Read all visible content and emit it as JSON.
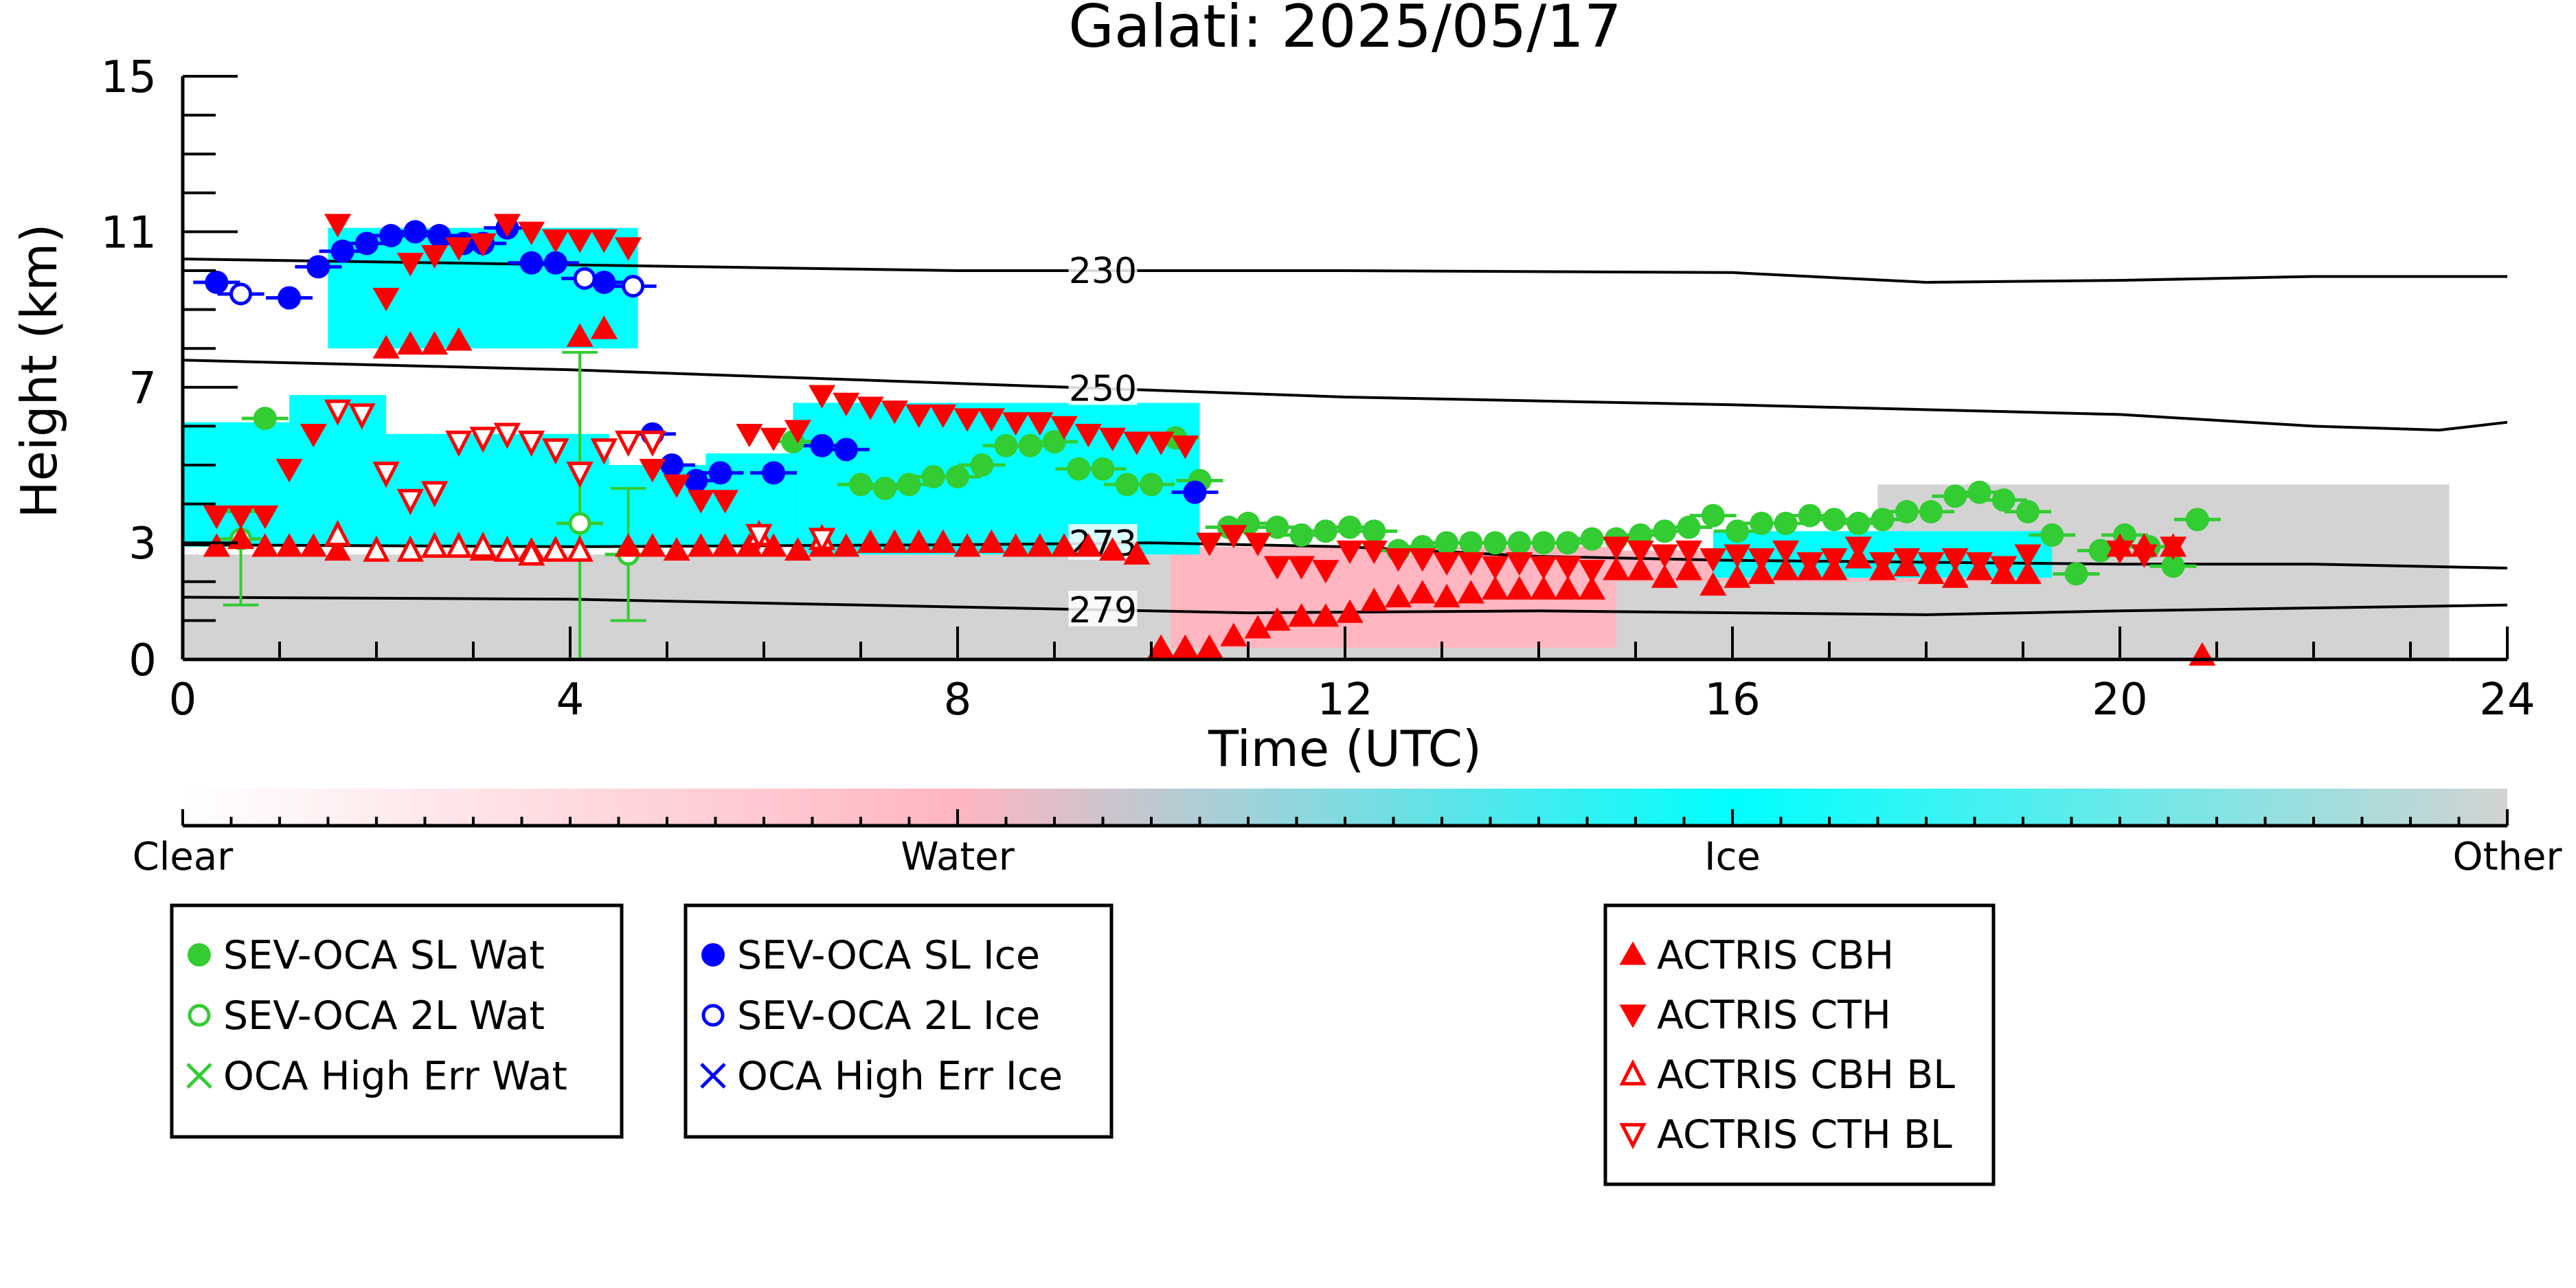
{
  "chart_data": {
    "type": "scatter",
    "title": "Galati: 2025/05/17",
    "xlabel": "Time (UTC)",
    "ylabel": "Height (km)",
    "xlim": [
      0,
      24
    ],
    "ylim": [
      0,
      15
    ],
    "xticks": [
      "0",
      "4",
      "8",
      "12",
      "16",
      "20",
      "24"
    ],
    "yticks": [
      "0",
      "3",
      "7",
      "11",
      "15"
    ],
    "colorbar": {
      "labels": [
        "Clear",
        "Water",
        "Ice",
        "Other"
      ],
      "colors": [
        "#ffffff",
        "#ffb6c1",
        "#00ffff",
        "#d3d3d3"
      ]
    },
    "contours": [
      {
        "label": "230",
        "points": [
          [
            0,
            10.3
          ],
          [
            4,
            10.15
          ],
          [
            8,
            10.0
          ],
          [
            12,
            10.0
          ],
          [
            16,
            9.95
          ],
          [
            18,
            9.7
          ],
          [
            20,
            9.75
          ],
          [
            22,
            9.85
          ],
          [
            24,
            9.85
          ]
        ]
      },
      {
        "label": "250",
        "points": [
          [
            0,
            7.7
          ],
          [
            4,
            7.45
          ],
          [
            8,
            7.1
          ],
          [
            12,
            6.75
          ],
          [
            16,
            6.55
          ],
          [
            20,
            6.3
          ],
          [
            22,
            6.0
          ],
          [
            23.3,
            5.9
          ],
          [
            24,
            6.1
          ]
        ]
      },
      {
        "label": "273",
        "points": [
          [
            0,
            2.95
          ],
          [
            4,
            2.9
          ],
          [
            8,
            2.95
          ],
          [
            10,
            3.0
          ],
          [
            12,
            2.9
          ],
          [
            14,
            2.65
          ],
          [
            16,
            2.55
          ],
          [
            20,
            2.45
          ],
          [
            22,
            2.45
          ],
          [
            24,
            2.35
          ]
        ]
      },
      {
        "label": "279",
        "points": [
          [
            0,
            1.6
          ],
          [
            4,
            1.55
          ],
          [
            8,
            1.35
          ],
          [
            11,
            1.2
          ],
          [
            14,
            1.25
          ],
          [
            18,
            1.15
          ],
          [
            20,
            1.25
          ],
          [
            24,
            1.4
          ]
        ]
      }
    ],
    "cloudmask": [
      {
        "class": "Other",
        "color": "#d3d3d3",
        "x0": 0,
        "x1": 23.4,
        "y0": 0,
        "y1": 2.7
      },
      {
        "class": "Other",
        "color": "#d3d3d3",
        "x0": 17.5,
        "x1": 23.4,
        "y0": 0,
        "y1": 4.5
      },
      {
        "class": "Water",
        "color": "#ffb6c1",
        "x0": 10.2,
        "x1": 14.8,
        "y0": 0.3,
        "y1": 2.9
      },
      {
        "class": "Water",
        "color": "#ffb6c1",
        "x0": 14.5,
        "x1": 19.2,
        "y0": 2.0,
        "y1": 2.8
      },
      {
        "class": "Ice",
        "color": "#00ffff",
        "x0": 0.0,
        "x1": 1.5,
        "y0": 2.9,
        "y1": 6.1
      },
      {
        "class": "Ice",
        "color": "#00ffff",
        "x0": 1.1,
        "x1": 2.1,
        "y0": 2.9,
        "y1": 6.8
      },
      {
        "class": "Ice",
        "color": "#00ffff",
        "x0": 2.1,
        "x1": 4.4,
        "y0": 2.9,
        "y1": 5.8
      },
      {
        "class": "Ice",
        "color": "#00ffff",
        "x0": 4.4,
        "x1": 5.4,
        "y0": 2.9,
        "y1": 5.0
      },
      {
        "class": "Ice",
        "color": "#00ffff",
        "x0": 5.4,
        "x1": 6.3,
        "y0": 2.9,
        "y1": 5.3
      },
      {
        "class": "Ice",
        "color": "#00ffff",
        "x0": 6.3,
        "x1": 10.5,
        "y0": 2.7,
        "y1": 6.6
      },
      {
        "class": "Ice",
        "color": "#00ffff",
        "x0": 1.5,
        "x1": 4.7,
        "y0": 8.0,
        "y1": 11.1
      },
      {
        "class": "Ice",
        "color": "#00ffff",
        "x0": 15.8,
        "x1": 19.3,
        "y0": 2.1,
        "y1": 3.3
      }
    ],
    "series": [
      {
        "name": "SEV-OCA SL Wat",
        "color": "#33cc33",
        "marker": "filled-circle",
        "x": [
          0.85,
          6.3,
          7.0,
          7.25,
          7.5,
          7.75,
          8.0,
          8.25,
          8.5,
          8.75,
          9.0,
          9.25,
          9.5,
          9.75,
          10.0,
          10.25,
          10.5,
          10.8,
          11.0,
          11.3,
          11.55,
          11.8,
          12.05,
          12.3,
          12.55,
          12.8,
          13.05,
          13.3,
          13.55,
          13.8,
          14.05,
          14.3,
          14.55,
          14.8,
          15.05,
          15.3,
          15.55,
          15.8,
          16.05,
          16.3,
          16.55,
          16.8,
          17.05,
          17.3,
          17.55,
          17.8,
          18.05,
          18.3,
          18.55,
          18.8,
          19.05,
          19.3,
          19.55,
          19.8,
          20.05,
          20.3,
          20.55,
          20.8
        ],
        "y": [
          6.2,
          5.6,
          4.5,
          4.4,
          4.5,
          4.7,
          4.7,
          5.0,
          5.5,
          5.5,
          5.6,
          4.9,
          4.9,
          4.5,
          4.5,
          5.7,
          4.6,
          3.4,
          3.5,
          3.4,
          3.2,
          3.3,
          3.4,
          3.3,
          2.8,
          2.9,
          3.0,
          3.0,
          3.0,
          3.0,
          3.0,
          3.0,
          3.1,
          3.1,
          3.2,
          3.3,
          3.4,
          3.7,
          3.3,
          3.5,
          3.5,
          3.7,
          3.6,
          3.5,
          3.6,
          3.8,
          3.8,
          4.2,
          4.3,
          4.1,
          3.8,
          3.2,
          2.2,
          2.8,
          3.2,
          2.9,
          2.4,
          3.6
        ]
      },
      {
        "name": "SEV-OCA 2L Wat",
        "color": "#33cc33",
        "marker": "open-circle",
        "x": [
          0.6,
          4.1,
          4.6
        ],
        "y": [
          3.1,
          3.5,
          2.7
        ],
        "yerr": [
          [
            1.4,
            3.8
          ],
          [
            0,
            7.9
          ],
          [
            1.0,
            4.4
          ]
        ]
      },
      {
        "name": "OCA High Err Wat",
        "color": "#33cc33",
        "marker": "x",
        "x": [],
        "y": []
      },
      {
        "name": "SEV-OCA SL Ice",
        "color": "#0000ff",
        "marker": "filled-circle",
        "x": [
          0.35,
          1.1,
          1.4,
          1.65,
          1.9,
          2.15,
          2.4,
          2.65,
          2.9,
          3.1,
          3.35,
          3.6,
          3.85,
          4.35,
          4.85,
          5.05,
          5.3,
          5.55,
          6.1,
          6.6,
          6.85,
          10.45
        ],
        "y": [
          9.7,
          9.3,
          10.1,
          10.5,
          10.7,
          10.9,
          11.0,
          10.9,
          10.7,
          10.7,
          11.1,
          10.2,
          10.2,
          9.7,
          5.8,
          5.0,
          4.6,
          4.8,
          4.8,
          5.5,
          5.4,
          4.3
        ]
      },
      {
        "name": "SEV-OCA 2L Ice",
        "color": "#0000ff",
        "marker": "open-circle",
        "x": [
          0.6,
          4.15,
          4.65
        ],
        "y": [
          9.4,
          9.8,
          9.6
        ]
      },
      {
        "name": "OCA High Err Ice",
        "color": "#0000ff",
        "marker": "x",
        "x": [],
        "y": []
      },
      {
        "name": "ACTRIS CBH",
        "color": "#ff0000",
        "marker": "triangle-up",
        "x": [
          0.35,
          0.6,
          0.85,
          1.1,
          1.35,
          1.6,
          2.1,
          2.35,
          2.6,
          2.85,
          3.1,
          3.35,
          3.6,
          3.85,
          4.1,
          4.35,
          4.6,
          4.85,
          5.1,
          5.35,
          5.6,
          5.85,
          6.1,
          6.35,
          6.6,
          6.85,
          7.1,
          7.35,
          7.6,
          7.85,
          8.1,
          8.35,
          8.6,
          8.85,
          9.1,
          9.35,
          9.6,
          9.85,
          10.1,
          10.35,
          10.6,
          10.85,
          11.1,
          11.3,
          11.55,
          11.8,
          12.05,
          12.3,
          12.55,
          12.8,
          13.05,
          13.3,
          13.55,
          13.8,
          14.05,
          14.3,
          14.55,
          14.8,
          15.05,
          15.3,
          15.55,
          15.8,
          16.05,
          16.3,
          16.55,
          16.8,
          17.05,
          17.3,
          17.55,
          17.8,
          18.05,
          18.3,
          18.55,
          18.8,
          19.05,
          20.0,
          20.25,
          20.55,
          20.85
        ],
        "y": [
          2.9,
          3.1,
          2.9,
          2.9,
          2.9,
          2.8,
          8.0,
          8.1,
          8.1,
          8.2,
          2.8,
          2.8,
          2.8,
          2.8,
          8.3,
          8.5,
          2.9,
          2.9,
          2.8,
          2.9,
          2.9,
          2.9,
          2.9,
          2.8,
          2.9,
          2.9,
          3.0,
          3.0,
          3.0,
          3.0,
          2.9,
          3.0,
          2.9,
          2.9,
          2.9,
          2.9,
          2.8,
          2.7,
          0.3,
          0.3,
          0.3,
          0.6,
          0.8,
          1.0,
          1.1,
          1.1,
          1.2,
          1.5,
          1.6,
          1.7,
          1.6,
          1.7,
          1.8,
          1.8,
          1.8,
          1.8,
          1.8,
          2.3,
          2.3,
          2.1,
          2.3,
          1.9,
          2.1,
          2.2,
          2.3,
          2.3,
          2.3,
          2.6,
          2.3,
          2.4,
          2.2,
          2.1,
          2.3,
          2.2,
          2.2,
          2.9,
          2.9,
          2.9,
          0.1
        ]
      },
      {
        "name": "ACTRIS CTH",
        "color": "#ff0000",
        "marker": "triangle-down",
        "x": [
          0.35,
          0.6,
          0.85,
          1.1,
          1.35,
          1.6,
          2.1,
          2.35,
          2.6,
          2.85,
          3.1,
          3.35,
          3.6,
          3.85,
          4.1,
          4.35,
          4.6,
          4.85,
          5.1,
          5.35,
          5.6,
          5.85,
          6.1,
          6.35,
          6.6,
          6.85,
          7.1,
          7.35,
          7.6,
          7.85,
          8.1,
          8.35,
          8.6,
          8.85,
          9.1,
          9.35,
          9.6,
          9.85,
          10.1,
          10.35,
          10.6,
          10.85,
          11.1,
          11.3,
          11.55,
          11.8,
          12.05,
          12.3,
          12.55,
          12.8,
          13.05,
          13.3,
          13.55,
          13.8,
          14.05,
          14.3,
          14.55,
          14.8,
          15.05,
          15.3,
          15.55,
          15.8,
          16.05,
          16.3,
          16.55,
          16.8,
          17.05,
          17.3,
          17.55,
          17.8,
          18.05,
          18.3,
          18.55,
          18.8,
          19.05,
          20.0,
          20.25,
          20.55
        ],
        "y": [
          3.7,
          3.7,
          3.7,
          4.9,
          5.8,
          11.2,
          9.3,
          10.2,
          10.4,
          10.6,
          10.7,
          11.2,
          11.0,
          10.8,
          10.8,
          10.8,
          10.6,
          4.9,
          4.5,
          4.1,
          4.1,
          5.8,
          5.7,
          5.9,
          6.8,
          6.6,
          6.5,
          6.4,
          6.3,
          6.3,
          6.2,
          6.2,
          6.1,
          6.1,
          6.0,
          5.8,
          5.7,
          5.6,
          5.6,
          5.5,
          3.0,
          3.2,
          3.0,
          2.4,
          2.4,
          2.3,
          2.8,
          2.8,
          2.6,
          2.6,
          2.5,
          2.5,
          2.4,
          2.5,
          2.4,
          2.4,
          2.3,
          2.9,
          2.8,
          2.7,
          2.8,
          2.6,
          2.7,
          2.6,
          2.8,
          2.5,
          2.6,
          2.9,
          2.5,
          2.6,
          2.5,
          2.6,
          2.5,
          2.4,
          2.7,
          2.8,
          2.7,
          2.9
        ]
      },
      {
        "name": "ACTRIS CBH BL",
        "color": "#ff0000",
        "marker": "open-triangle-up",
        "x": [
          1.6,
          2.0,
          2.35,
          2.6,
          2.85,
          3.1,
          3.35,
          3.6,
          3.85,
          4.1,
          5.95,
          6.6
        ],
        "y": [
          3.2,
          2.8,
          2.8,
          2.9,
          2.9,
          2.9,
          2.8,
          2.7,
          2.8,
          2.8,
          3.2,
          3.1
        ]
      },
      {
        "name": "ACTRIS CTH BL",
        "color": "#ff0000",
        "marker": "open-triangle-down",
        "x": [
          1.6,
          1.85,
          2.1,
          2.35,
          2.6,
          2.85,
          3.1,
          3.35,
          3.6,
          3.85,
          4.1,
          4.35,
          4.6,
          4.85,
          5.95,
          6.6
        ],
        "y": [
          6.4,
          6.3,
          4.8,
          4.1,
          4.3,
          5.6,
          5.7,
          5.8,
          5.6,
          5.4,
          4.8,
          5.4,
          5.6,
          5.6,
          3.2,
          3.1
        ]
      }
    ]
  }
}
